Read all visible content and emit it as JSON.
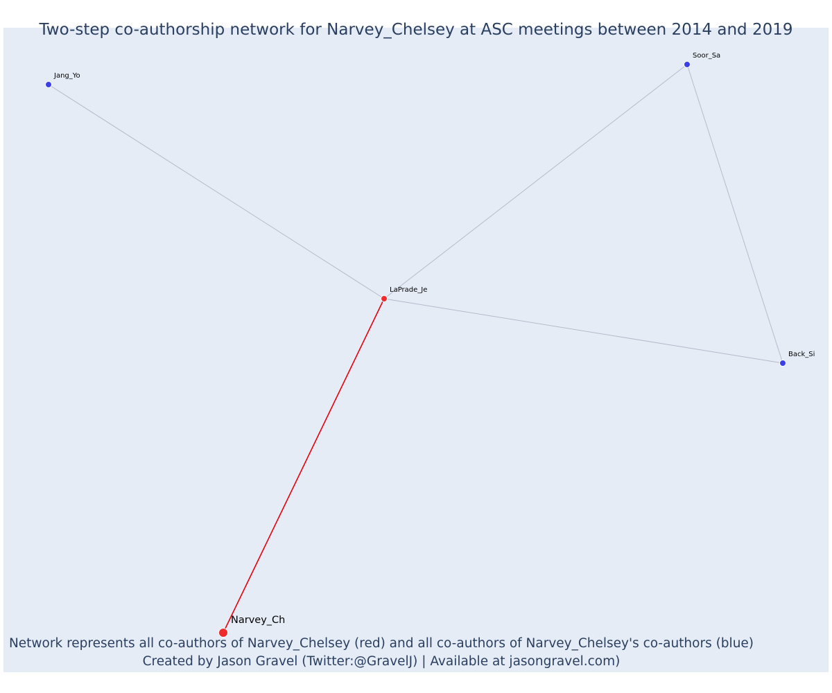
{
  "title": "Two-step co-authorship network for Narvey_Chelsey at ASC meetings between 2014 and 2019",
  "footer": {
    "line1": "Network represents all co-authors of Narvey_Chelsey (red) and all co-authors of Narvey_Chelsey's co-authors (blue)",
    "line2": "Created by Jason Gravel (Twitter:@GravelJ) | Available at jasongravel.com)"
  },
  "colors": {
    "plot_background": "#e5ecf6",
    "focal": "#ef2b2b",
    "first_step": "#ef2b2b",
    "second_step": "#3b3fe8",
    "focal_edge": "#e8000b",
    "other_edge": "#b8b9cc",
    "text": "#2a3f5f"
  },
  "nodes": [
    {
      "id": "narvey",
      "label": "Narvey_Ch",
      "group": "focal"
    },
    {
      "id": "laprade",
      "label": "LaPrade_Je",
      "group": "first_step"
    },
    {
      "id": "jang",
      "label": "Jang_Yo",
      "group": "second_step"
    },
    {
      "id": "soor",
      "label": "Soor_Sa",
      "group": "second_step"
    },
    {
      "id": "back",
      "label": "Back_Si",
      "group": "second_step"
    }
  ],
  "edges": [
    {
      "source": "narvey",
      "target": "laprade",
      "type": "focal"
    },
    {
      "source": "laprade",
      "target": "jang",
      "type": "other"
    },
    {
      "source": "laprade",
      "target": "soor",
      "type": "other"
    },
    {
      "source": "laprade",
      "target": "back",
      "type": "other"
    },
    {
      "source": "soor",
      "target": "back",
      "type": "other"
    }
  ]
}
